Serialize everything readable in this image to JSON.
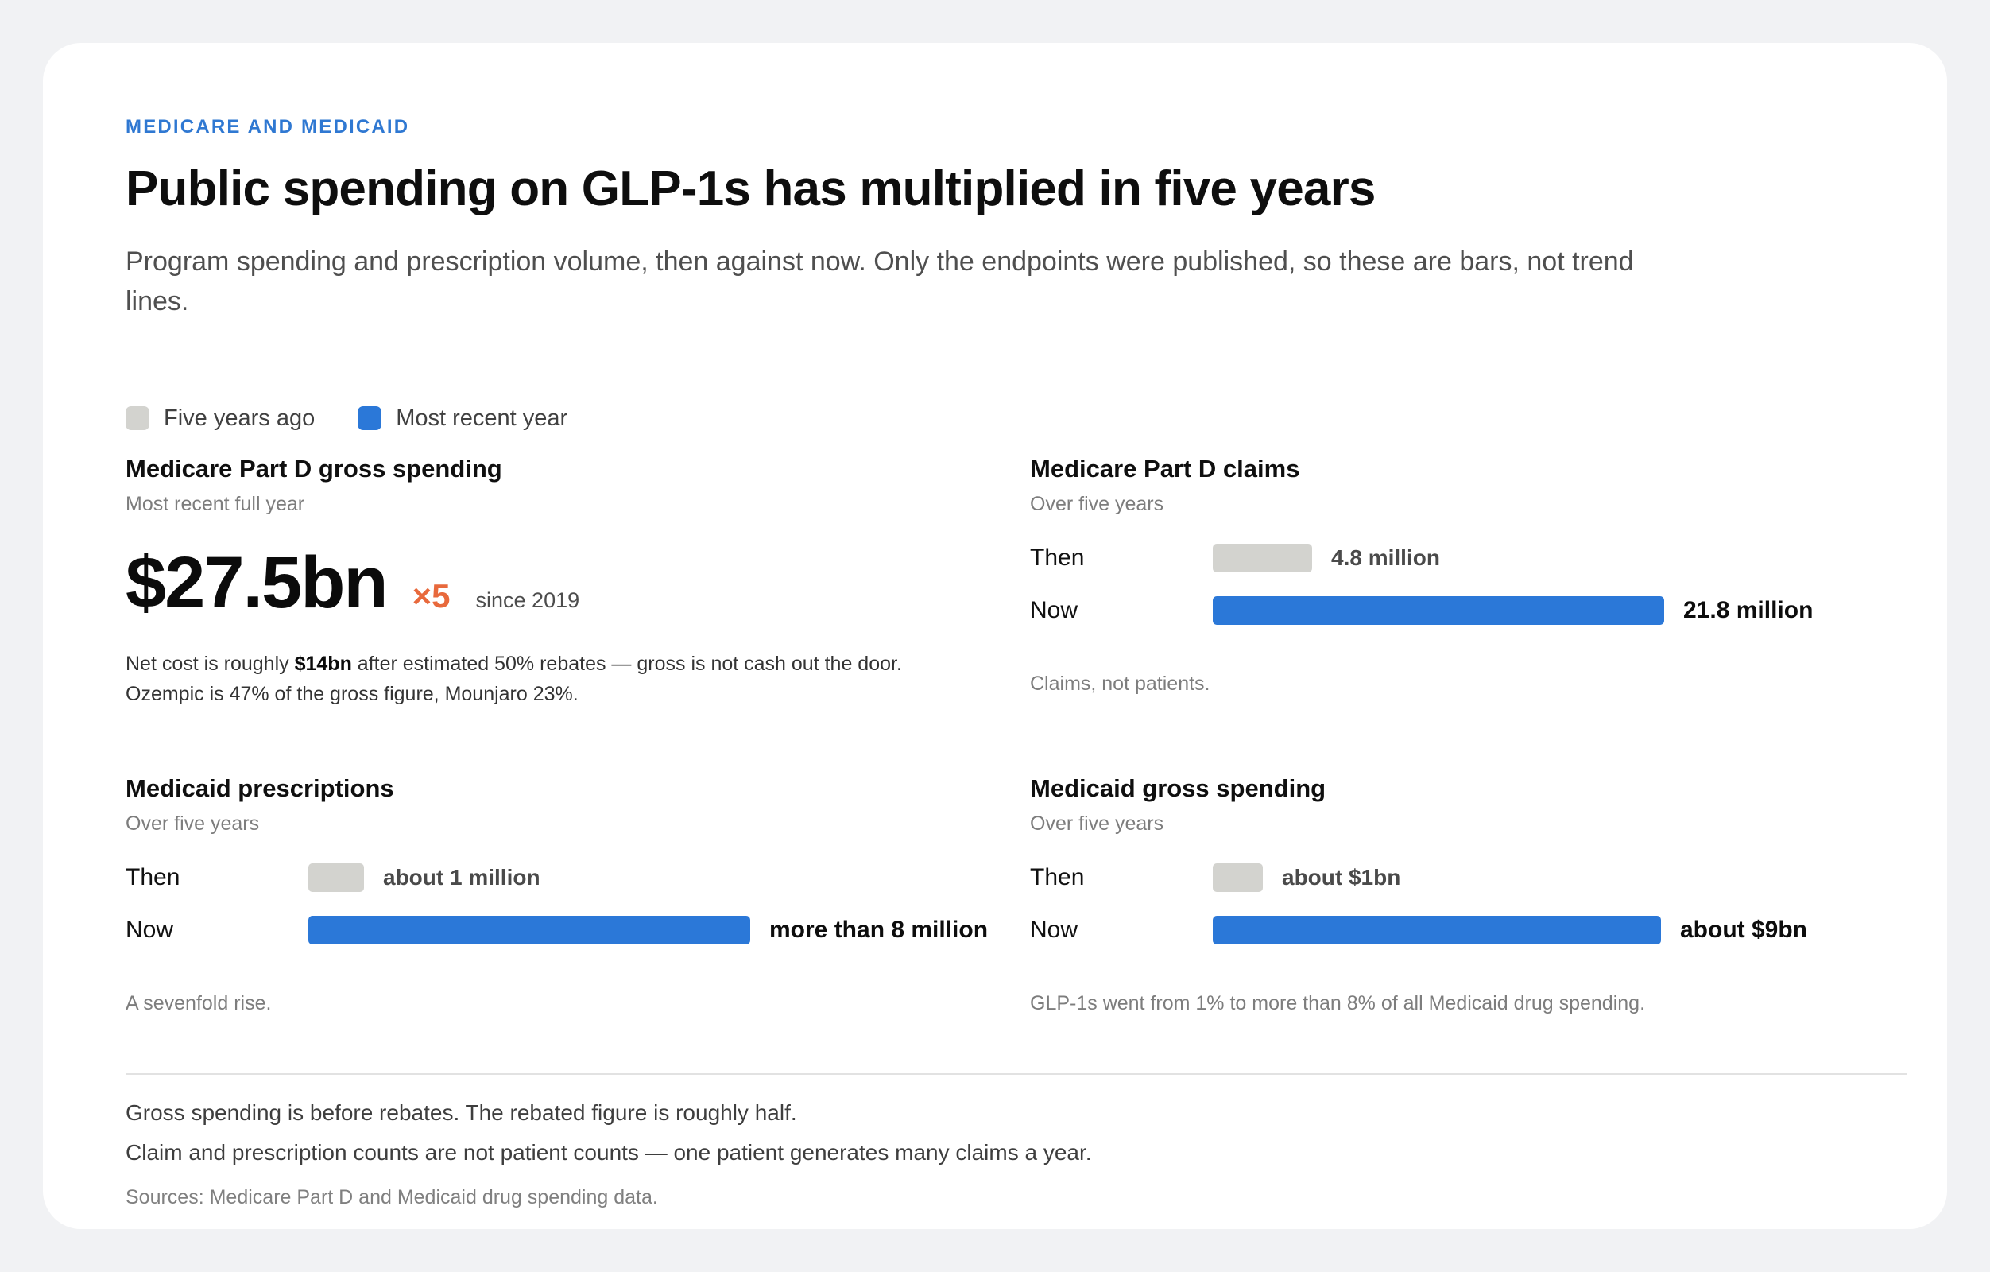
{
  "kicker": "MEDICARE AND MEDICAID",
  "title": "Public spending on GLP-1s has multiplied in five years",
  "subtitle": "Program spending and prescription volume, then against now. Only the endpoints were published, so these are bars, not trend lines.",
  "legend": [
    {
      "label": "Five years ago",
      "color": "#d3d3cf"
    },
    {
      "label": "Most recent year",
      "color": "#2b78d8"
    }
  ],
  "colors": {
    "then": "#d3d3cf",
    "now": "#2b78d8",
    "multiplier": "#e8693c"
  },
  "part_d_spending": {
    "title": "Medicare Part D gross spending",
    "subtitle": "Most recent full year",
    "value": "$27.5bn",
    "multiplier": "×5",
    "since": "since 2019",
    "note_line1_pre": "Net cost is roughly ",
    "note_line1_bold": "$14bn",
    "note_line1_post": " after estimated 50% rebates — gross is not cash out the door.",
    "note_line2": "Ozempic is 47% of the gross figure, Mounjaro 23%."
  },
  "chart_data": [
    {
      "type": "bar",
      "title": "Medicare Part D claims",
      "subtitle": "Over five years",
      "categories": [
        "Then",
        "Now"
      ],
      "values": [
        4.8,
        21.8
      ],
      "value_labels": [
        "4.8 million",
        "21.8 million"
      ],
      "unit": "million claims",
      "note": "Claims, not patients."
    },
    {
      "type": "bar",
      "title": "Medicaid prescriptions",
      "subtitle": "Over five years",
      "categories": [
        "Then",
        "Now"
      ],
      "values": [
        1,
        8
      ],
      "value_labels": [
        "about 1 million",
        "more than 8 million"
      ],
      "unit": "million prescriptions",
      "note": "A sevenfold rise."
    },
    {
      "type": "bar",
      "title": "Medicaid gross spending",
      "subtitle": "Over five years",
      "categories": [
        "Then",
        "Now"
      ],
      "values": [
        1,
        9
      ],
      "value_labels": [
        "about $1bn",
        "about $9bn"
      ],
      "unit": "$bn",
      "note": "GLP-1s went from 1% to more than 8% of all Medicaid drug spending."
    }
  ],
  "footnotes": [
    "Gross spending is before rebates. The rebated figure is roughly half.",
    "Claim and prescription counts are not patient counts — one patient generates many claims a year."
  ],
  "source": "Sources: Medicare Part D and Medicaid drug spending data."
}
